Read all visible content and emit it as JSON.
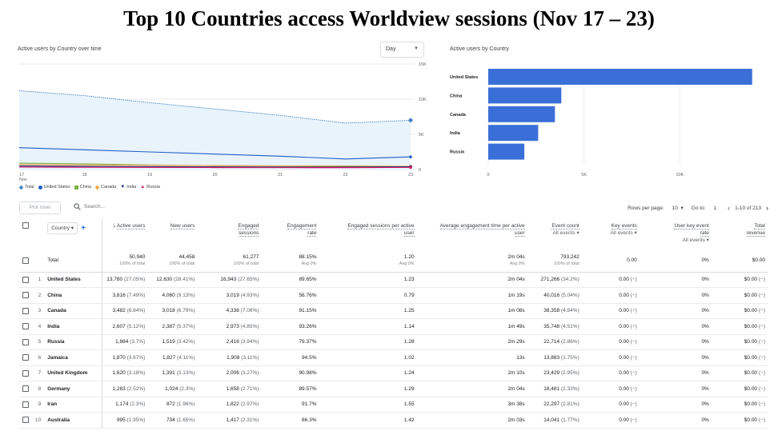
{
  "slide": {
    "title": "Top 10 Countries access Worldview sessions (Nov 17 – 23)"
  },
  "line_card": {
    "title": "Active users by Country over time",
    "granularity": "Day",
    "y_ticks": [
      "15K",
      "10K",
      "5K",
      "0"
    ],
    "x_ticks": [
      "17",
      "18",
      "19",
      "20",
      "21",
      "22",
      "23"
    ],
    "x_sub": "Nov",
    "legend": [
      {
        "label": "Total",
        "color": "#4a86c5",
        "icon": "diamond"
      },
      {
        "label": "United States",
        "color": "#1f5fc4",
        "icon": "circle"
      },
      {
        "label": "China",
        "color": "#7cb342",
        "icon": "square"
      },
      {
        "label": "Canada",
        "color": "#f4a340",
        "icon": "diamond"
      },
      {
        "label": "India",
        "color": "#1a237e",
        "icon": "triangle-down"
      },
      {
        "label": "Russia",
        "color": "#d81b60",
        "icon": "triangle-up"
      }
    ]
  },
  "bar_card": {
    "title": "Active users by Country",
    "x_ticks": [
      "0",
      "5K",
      "10K"
    ]
  },
  "chart_data": [
    {
      "type": "line",
      "x": [
        "17",
        "18",
        "19",
        "20",
        "21",
        "22",
        "23"
      ],
      "ylim": [
        0,
        15000
      ],
      "series": [
        {
          "name": "Total",
          "values": [
            11200,
            10500,
            9500,
            8600,
            7700,
            6600,
            7000
          ]
        },
        {
          "name": "United States",
          "values": [
            3100,
            2800,
            2500,
            2200,
            1900,
            1500,
            1800
          ]
        },
        {
          "name": "China",
          "values": [
            900,
            800,
            650,
            550,
            500,
            500,
            450
          ]
        },
        {
          "name": "Canada",
          "values": [
            700,
            650,
            600,
            550,
            500,
            450,
            450
          ]
        },
        {
          "name": "India",
          "values": [
            500,
            450,
            400,
            380,
            350,
            350,
            400
          ]
        },
        {
          "name": "Russia",
          "values": [
            350,
            320,
            300,
            280,
            270,
            260,
            300
          ]
        }
      ]
    },
    {
      "type": "bar",
      "orientation": "horizontal",
      "categories": [
        "United States",
        "China",
        "Canada",
        "India",
        "Russia"
      ],
      "values": [
        13780,
        3816,
        3482,
        2607,
        1884
      ],
      "xlim": [
        0,
        14000
      ],
      "color": "#3a6fd8"
    }
  ],
  "toolbar": {
    "plot_rows": "Plot rows",
    "search_placeholder": "Search...",
    "rows_per_page_label": "Rows per page:",
    "rows_per_page": "10",
    "goto_label": "Go to:",
    "goto_value": "1",
    "range": "1-10 of 213"
  },
  "table": {
    "dimension": "Country",
    "columns": [
      {
        "l1": "Active users",
        "l2": "",
        "sort": true
      },
      {
        "l1": "New users",
        "l2": ""
      },
      {
        "l1": "Engaged",
        "l2": "sessions"
      },
      {
        "l1": "Engagement",
        "l2": "rate"
      },
      {
        "l1": "Engaged sessions per active",
        "l2": "user"
      },
      {
        "l1": "Average engagement time per active",
        "l2": "user"
      },
      {
        "l1": "Event count",
        "l2": "",
        "sub": "All events"
      },
      {
        "l1": "Key events",
        "l2": "",
        "sub": "All events"
      },
      {
        "l1": "User key event",
        "l2": "rate",
        "sub": "All events"
      },
      {
        "l1": "Total",
        "l2": "revenue"
      }
    ],
    "total": {
      "label": "Total",
      "cells": [
        {
          "v": "50,940",
          "s": "100% of total"
        },
        {
          "v": "44,458",
          "s": "100% of total"
        },
        {
          "v": "61,277",
          "s": "100% of total"
        },
        {
          "v": "88.15%",
          "s": "Avg 0%"
        },
        {
          "v": "1.20",
          "s": "Avg 0%"
        },
        {
          "v": "2m 04s",
          "s": "Avg 0%"
        },
        {
          "v": "793,242",
          "s": "100% of total"
        },
        {
          "v": "0.00",
          "s": ""
        },
        {
          "v": "0%",
          "s": ""
        },
        {
          "v": "$0.00",
          "s": ""
        }
      ]
    },
    "rows": [
      {
        "i": "1",
        "c": "United States",
        "v": [
          [
            "13,780",
            "(27.05%)"
          ],
          [
            "12,630",
            "(28.41%)"
          ],
          [
            "16,943",
            "(27.65%)"
          ],
          [
            "89.65%",
            ""
          ],
          [
            "1.23",
            ""
          ],
          [
            "2m 04s",
            ""
          ],
          [
            "271,266",
            "(34.2%)"
          ],
          [
            "0.00",
            "(−)"
          ],
          [
            "0%",
            ""
          ],
          [
            "$0.00",
            "(−)"
          ]
        ]
      },
      {
        "i": "2",
        "c": "China",
        "v": [
          [
            "3,816",
            "(7.49%)"
          ],
          [
            "4,060",
            "(9.13%)"
          ],
          [
            "3,019",
            "(4.93%)"
          ],
          [
            "56.76%",
            ""
          ],
          [
            "0.79",
            ""
          ],
          [
            "1m 19s",
            ""
          ],
          [
            "40,016",
            "(5.04%)"
          ],
          [
            "0.00",
            "(−)"
          ],
          [
            "0%",
            ""
          ],
          [
            "$0.00",
            "(−)"
          ]
        ]
      },
      {
        "i": "3",
        "c": "Canada",
        "v": [
          [
            "3,482",
            "(6.84%)"
          ],
          [
            "3,018",
            "(6.79%)"
          ],
          [
            "4,338",
            "(7.08%)"
          ],
          [
            "91.15%",
            ""
          ],
          [
            "1.25",
            ""
          ],
          [
            "1m 08s",
            ""
          ],
          [
            "38,358",
            "(4.84%)"
          ],
          [
            "0.00",
            "(−)"
          ],
          [
            "0%",
            ""
          ],
          [
            "$0.00",
            "(−)"
          ]
        ]
      },
      {
        "i": "4",
        "c": "India",
        "v": [
          [
            "2,607",
            "(5.12%)"
          ],
          [
            "2,387",
            "(5.37%)"
          ],
          [
            "2,973",
            "(4.85%)"
          ],
          [
            "93.26%",
            ""
          ],
          [
            "1.14",
            ""
          ],
          [
            "1m 49s",
            ""
          ],
          [
            "35,748",
            "(4.51%)"
          ],
          [
            "0.00",
            "(−)"
          ],
          [
            "0%",
            ""
          ],
          [
            "$0.00",
            "(−)"
          ]
        ]
      },
      {
        "i": "5",
        "c": "Russia",
        "v": [
          [
            "1,884",
            "(3.7%)"
          ],
          [
            "1,519",
            "(3.42%)"
          ],
          [
            "2,416",
            "(3.94%)"
          ],
          [
            "79.37%",
            ""
          ],
          [
            "1.28",
            ""
          ],
          [
            "2m 29s",
            ""
          ],
          [
            "22,714",
            "(2.86%)"
          ],
          [
            "0.00",
            "(−)"
          ],
          [
            "0%",
            ""
          ],
          [
            "$0.00",
            "(−)"
          ]
        ]
      },
      {
        "i": "6",
        "c": "Jamaica",
        "v": [
          [
            "1,870",
            "(3.67%)"
          ],
          [
            "1,827",
            "(4.11%)"
          ],
          [
            "1,908",
            "(3.11%)"
          ],
          [
            "94.5%",
            ""
          ],
          [
            "1.02",
            ""
          ],
          [
            "13s",
            ""
          ],
          [
            "13,883",
            "(1.75%)"
          ],
          [
            "0.00",
            "(−)"
          ],
          [
            "0%",
            ""
          ],
          [
            "$0.00",
            "(−)"
          ]
        ]
      },
      {
        "i": "7",
        "c": "United Kingdom",
        "v": [
          [
            "1,620",
            "(3.18%)"
          ],
          [
            "1,391",
            "(3.13%)"
          ],
          [
            "2,006",
            "(3.27%)"
          ],
          [
            "90.98%",
            ""
          ],
          [
            "1.24",
            ""
          ],
          [
            "2m 10s",
            ""
          ],
          [
            "23,429",
            "(2.95%)"
          ],
          [
            "0.00",
            "(−)"
          ],
          [
            "0%",
            ""
          ],
          [
            "$0.00",
            "(−)"
          ]
        ]
      },
      {
        "i": "8",
        "c": "Germany",
        "v": [
          [
            "1,283",
            "(2.52%)"
          ],
          [
            "1,024",
            "(2.3%)"
          ],
          [
            "1,658",
            "(2.71%)"
          ],
          [
            "89.57%",
            ""
          ],
          [
            "1.29",
            ""
          ],
          [
            "2m 04s",
            ""
          ],
          [
            "18,481",
            "(2.33%)"
          ],
          [
            "0.00",
            "(−)"
          ],
          [
            "0%",
            ""
          ],
          [
            "$0.00",
            "(−)"
          ]
        ]
      },
      {
        "i": "9",
        "c": "Iran",
        "v": [
          [
            "1,174",
            "(2.3%)"
          ],
          [
            "872",
            "(1.96%)"
          ],
          [
            "1,822",
            "(2.97%)"
          ],
          [
            "91.7%",
            ""
          ],
          [
            "1.55",
            ""
          ],
          [
            "3m 38s",
            ""
          ],
          [
            "22,297",
            "(2.81%)"
          ],
          [
            "0.00",
            "(−)"
          ],
          [
            "0%",
            ""
          ],
          [
            "$0.00",
            "(−)"
          ]
        ]
      },
      {
        "i": "10",
        "c": "Australia",
        "v": [
          [
            "995",
            "(1.95%)"
          ],
          [
            "734",
            "(1.65%)"
          ],
          [
            "1,417",
            "(2.31%)"
          ],
          [
            "86.3%",
            ""
          ],
          [
            "1.42",
            ""
          ],
          [
            "2m 03s",
            ""
          ],
          [
            "14,041",
            "(1.77%)"
          ],
          [
            "0.00",
            "(−)"
          ],
          [
            "0%",
            ""
          ],
          [
            "$0.00",
            "(−)"
          ]
        ]
      }
    ]
  }
}
